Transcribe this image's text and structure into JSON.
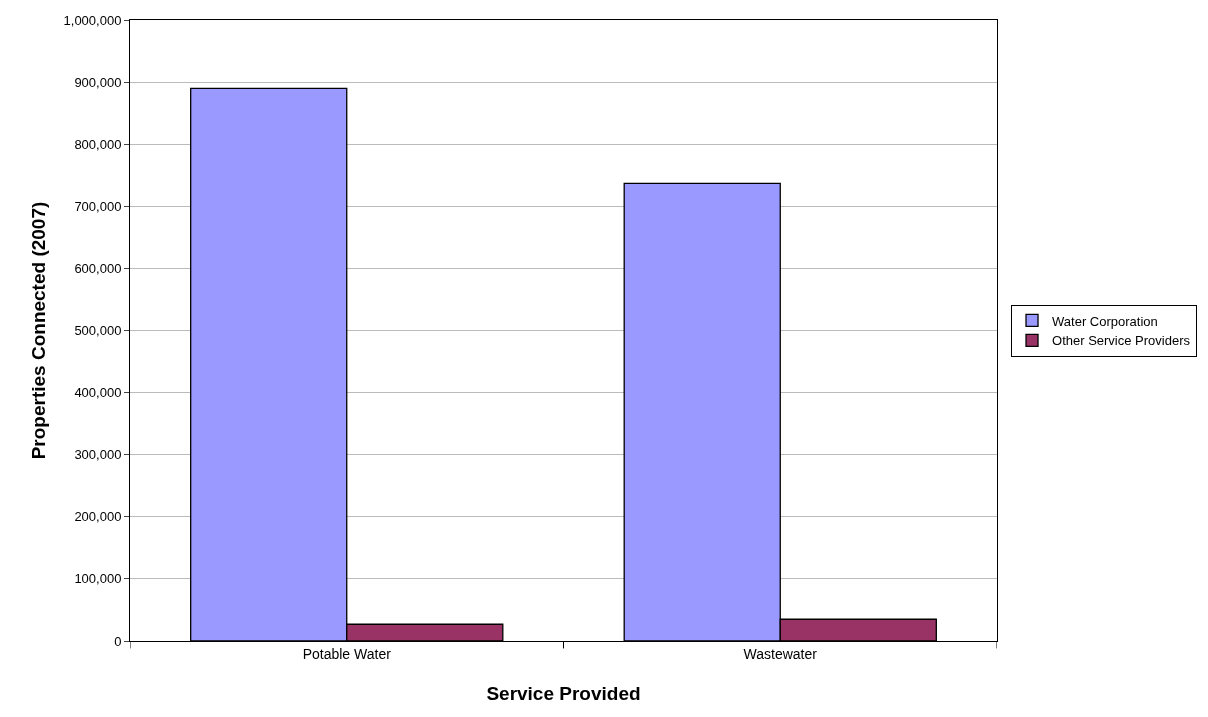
{
  "chart_data": {
    "type": "bar",
    "xlabel": "Service Provided",
    "ylabel": "Properties Connected (2007)",
    "categories": [
      "Potable Water",
      "Wastewater"
    ],
    "series": [
      {
        "name": "Water Corporation",
        "color": "#9999ff",
        "values": [
          890000,
          737000
        ]
      },
      {
        "name": "Other Service Providers",
        "color": "#993366",
        "values": [
          27000,
          35000
        ]
      }
    ],
    "ylim": [
      0,
      1000000
    ],
    "yticks": [
      {
        "value": 0,
        "label": "0"
      },
      {
        "value": 100000,
        "label": "100,000"
      },
      {
        "value": 200000,
        "label": "200,000"
      },
      {
        "value": 300000,
        "label": "300,000"
      },
      {
        "value": 400000,
        "label": "400,000"
      },
      {
        "value": 500000,
        "label": "500,000"
      },
      {
        "value": 600000,
        "label": "600,000"
      },
      {
        "value": 700000,
        "label": "700,000"
      },
      {
        "value": 800000,
        "label": "800,000"
      },
      {
        "value": 900000,
        "label": "900,000"
      },
      {
        "value": 1000000,
        "label": "1,000,000"
      }
    ],
    "grid": "y",
    "legend": "right"
  }
}
